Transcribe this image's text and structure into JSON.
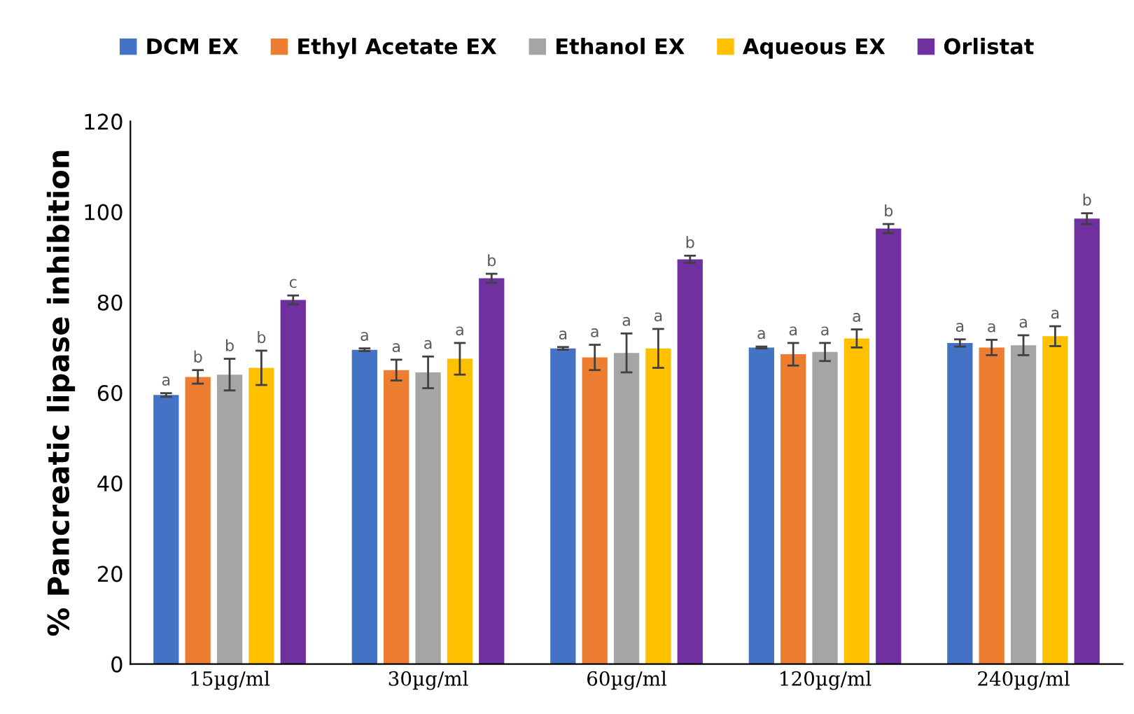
{
  "chart_data": {
    "type": "bar",
    "ylabel": "% Pancreatic lipase inhibition",
    "categories": [
      "15µg/ml",
      "30µg/ml",
      "60µg/ml",
      "120µg/ml",
      "240µg/ml"
    ],
    "series": [
      {
        "name": "DCM EX",
        "color": "#4472c4",
        "values": [
          59.5,
          69.5,
          69.8,
          70,
          71
        ],
        "errors": [
          0.4,
          0.3,
          0.3,
          0.2,
          0.8
        ],
        "value_labels": [
          "a",
          "a",
          "a",
          "a",
          "a"
        ]
      },
      {
        "name": "Ethyl Acetate EX",
        "color": "#ed7d31",
        "values": [
          63.5,
          65,
          67.8,
          68.5,
          70
        ],
        "errors": [
          1.5,
          2.3,
          2.8,
          2.5,
          1.7
        ],
        "value_labels": [
          "b",
          "a",
          "a",
          "a",
          "a"
        ]
      },
      {
        "name": "Ethanol EX",
        "color": "#a5a5a5",
        "values": [
          64,
          64.5,
          68.8,
          69,
          70.5
        ],
        "errors": [
          3.5,
          3.5,
          4.3,
          2,
          2.2
        ],
        "value_labels": [
          "b",
          "a",
          "a",
          "a",
          "a"
        ]
      },
      {
        "name": "Aqueous EX",
        "color": "#ffc000",
        "values": [
          65.5,
          67.5,
          69.8,
          72,
          72.5
        ],
        "errors": [
          3.8,
          3.5,
          4.3,
          2,
          2.2
        ],
        "value_labels": [
          "b",
          "a",
          "a",
          "a",
          "a"
        ]
      },
      {
        "name": "Orlistat",
        "color": "#7030a0",
        "values": [
          80.5,
          85.3,
          89.5,
          96.3,
          98.5
        ],
        "errors": [
          1,
          1,
          0.8,
          1,
          1.2
        ],
        "value_labels": [
          "c",
          "b",
          "b",
          "b",
          "b"
        ]
      }
    ],
    "ylim": [
      0,
      120
    ],
    "yticks": [
      0,
      20,
      40,
      60,
      80,
      100,
      120
    ],
    "grid": false,
    "legend": "top"
  }
}
